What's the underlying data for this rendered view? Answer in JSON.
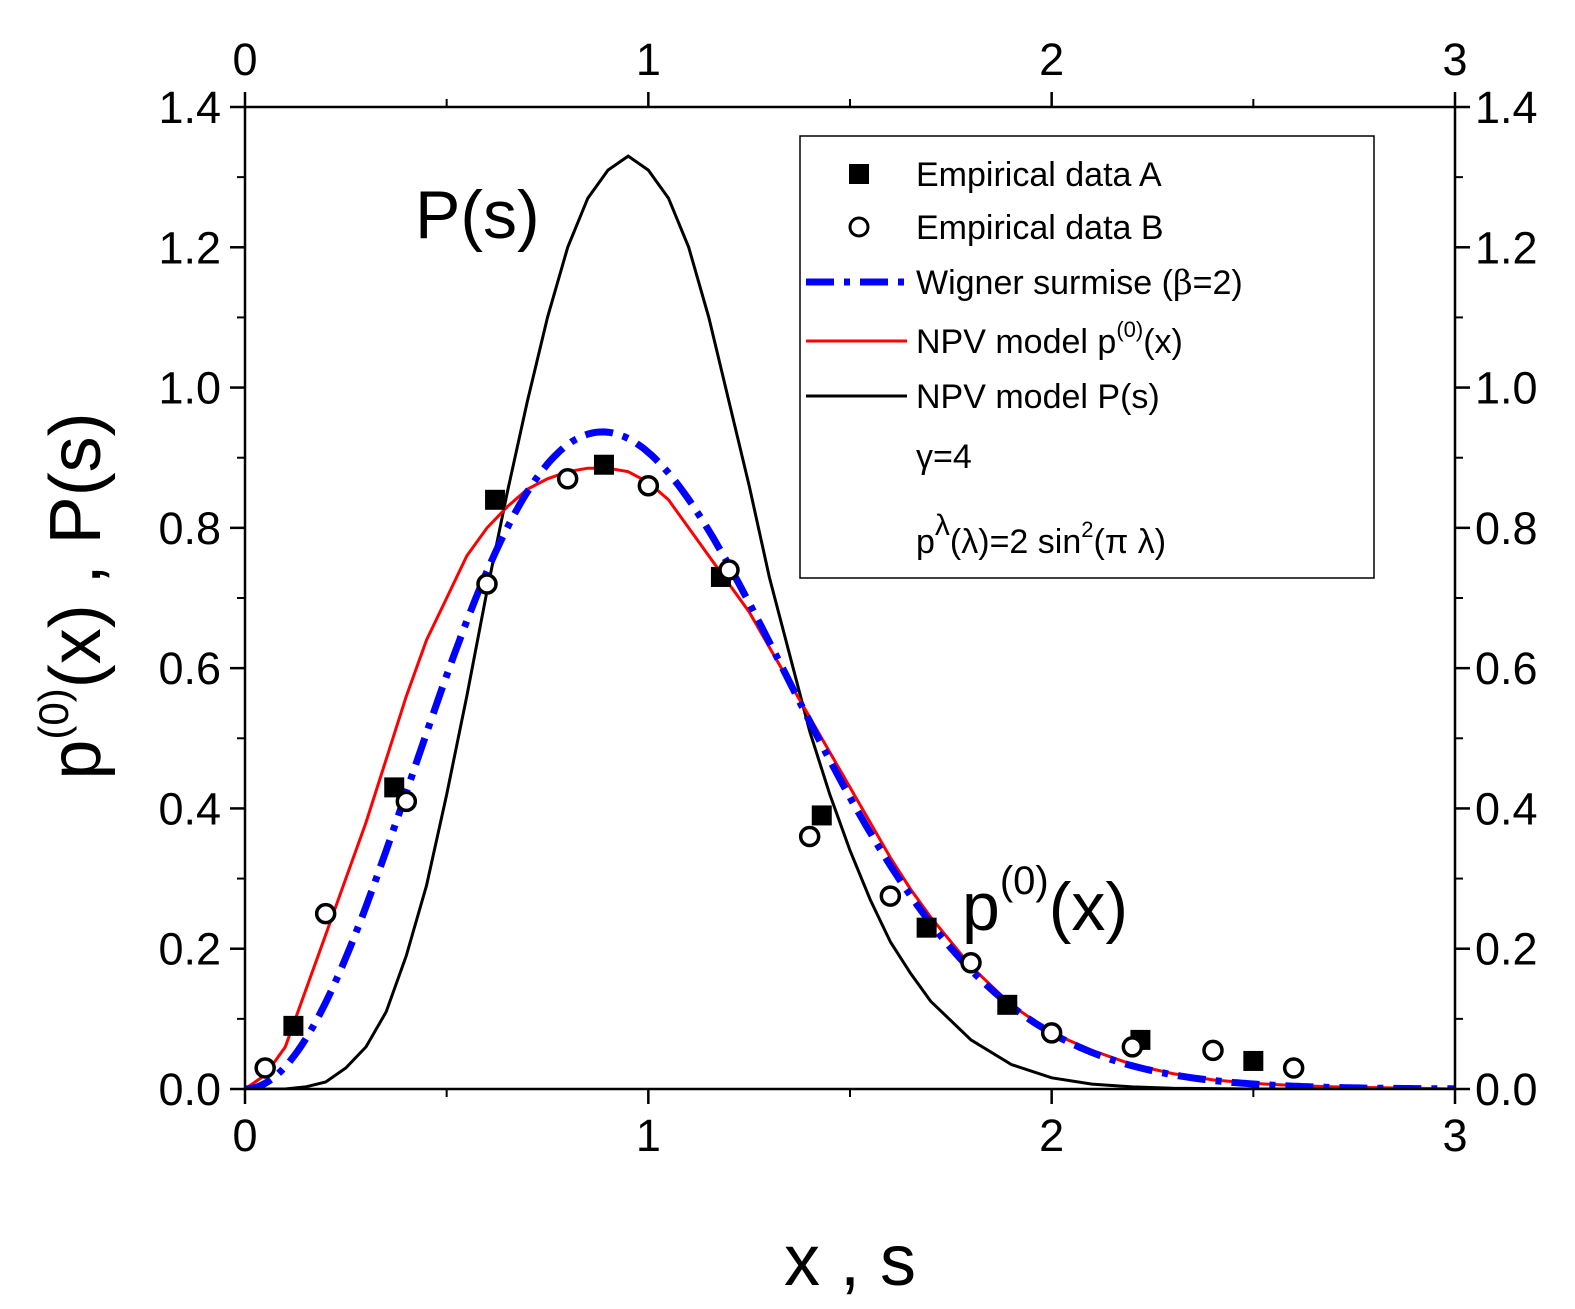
{
  "chart_data": {
    "type": "line",
    "title": "",
    "xlabel": "x , s",
    "ylabel_main": "p",
    "ylabel_sup": "(0)",
    "ylabel_rest": "(x) , P(s)",
    "xlim": [
      0,
      3
    ],
    "ylim": [
      0,
      1.4
    ],
    "xticks": [
      0,
      1,
      2,
      3
    ],
    "xtick_labels": [
      "0",
      "1",
      "2",
      "3"
    ],
    "yticks": [
      0,
      0.2,
      0.4,
      0.6,
      0.8,
      1.0,
      1.2,
      1.4
    ],
    "ytick_labels": [
      "0.0",
      "0.2",
      "0.4",
      "0.6",
      "0.8",
      "1.0",
      "1.2",
      "1.4"
    ],
    "legend_position": "top-right",
    "grid": false,
    "series": [
      {
        "name": "Empirical data A",
        "kind": "scatter",
        "marker": "filled-square",
        "color": "#000000",
        "x": [
          0.12,
          0.37,
          0.62,
          0.89,
          1.18,
          1.43,
          1.69,
          1.89,
          2.22,
          2.5
        ],
        "y": [
          0.09,
          0.43,
          0.84,
          0.89,
          0.73,
          0.39,
          0.23,
          0.12,
          0.07,
          0.04
        ]
      },
      {
        "name": "Empirical data B",
        "kind": "scatter",
        "marker": "open-circle",
        "color": "#000000",
        "x": [
          0.05,
          0.2,
          0.4,
          0.6,
          0.8,
          1.0,
          1.2,
          1.4,
          1.6,
          1.8,
          2.0,
          2.2,
          2.4,
          2.6
        ],
        "y": [
          0.03,
          0.25,
          0.41,
          0.72,
          0.87,
          0.86,
          0.74,
          0.36,
          0.275,
          0.18,
          0.08,
          0.06,
          0.055,
          0.03
        ]
      },
      {
        "name": "Wigner surmise (β=2)",
        "legend_main": "Wigner surmise (",
        "legend_beta": "β",
        "legend_tail": "=2)",
        "kind": "line",
        "style": "dash-dot",
        "color": "#0000ff",
        "formula": "32/pi^2 * x^2 * exp(-4 x^2 / pi)"
      },
      {
        "name": "NPV model p(0)(x)",
        "legend_main": "NPV model p",
        "legend_sup": "(0)",
        "legend_tail": "(x)",
        "kind": "line",
        "style": "solid",
        "color": "#ff0000",
        "x": [
          0,
          0.05,
          0.1,
          0.15,
          0.2,
          0.25,
          0.3,
          0.35,
          0.4,
          0.45,
          0.5,
          0.55,
          0.6,
          0.65,
          0.7,
          0.75,
          0.8,
          0.85,
          0.9,
          0.95,
          1.0,
          1.05,
          1.1,
          1.15,
          1.2,
          1.25,
          1.3,
          1.35,
          1.4,
          1.45,
          1.5,
          1.55,
          1.6,
          1.65,
          1.7,
          1.75,
          1.8,
          1.9,
          2.0,
          2.1,
          2.2,
          2.3,
          2.4,
          2.5,
          2.6,
          2.7,
          2.8,
          2.9,
          3.0
        ],
        "y": [
          0.0,
          0.02,
          0.06,
          0.14,
          0.22,
          0.3,
          0.38,
          0.47,
          0.56,
          0.64,
          0.7,
          0.76,
          0.8,
          0.83,
          0.855,
          0.87,
          0.88,
          0.885,
          0.885,
          0.88,
          0.865,
          0.84,
          0.8,
          0.76,
          0.72,
          0.68,
          0.63,
          0.58,
          0.53,
          0.48,
          0.43,
          0.38,
          0.33,
          0.285,
          0.245,
          0.21,
          0.175,
          0.12,
          0.08,
          0.055,
          0.035,
          0.022,
          0.013,
          0.008,
          0.005,
          0.003,
          0.002,
          0.001,
          0.0
        ]
      },
      {
        "name": "NPV model P(s)",
        "legend_main": "NPV model P(s)",
        "kind": "line",
        "style": "solid",
        "color": "#000000",
        "x": [
          0,
          0.1,
          0.15,
          0.2,
          0.25,
          0.3,
          0.35,
          0.4,
          0.45,
          0.5,
          0.55,
          0.6,
          0.65,
          0.7,
          0.75,
          0.8,
          0.85,
          0.9,
          0.95,
          1.0,
          1.05,
          1.1,
          1.15,
          1.2,
          1.25,
          1.3,
          1.35,
          1.4,
          1.45,
          1.5,
          1.55,
          1.6,
          1.65,
          1.7,
          1.8,
          1.9,
          2.0,
          2.1,
          2.2,
          2.3,
          2.5,
          2.7,
          3.0
        ],
        "y": [
          0.0,
          0.0,
          0.003,
          0.01,
          0.03,
          0.06,
          0.11,
          0.19,
          0.29,
          0.42,
          0.56,
          0.71,
          0.85,
          0.98,
          1.1,
          1.2,
          1.27,
          1.31,
          1.33,
          1.31,
          1.27,
          1.2,
          1.1,
          0.98,
          0.86,
          0.73,
          0.62,
          0.51,
          0.42,
          0.34,
          0.27,
          0.21,
          0.165,
          0.125,
          0.07,
          0.035,
          0.016,
          0.007,
          0.003,
          0.001,
          0.0,
          0.0,
          0.0
        ]
      }
    ],
    "legend_params": {
      "gamma": "γ=4",
      "p_base": "p",
      "p_sup": "λ",
      "p_paren": "(λ)=2 sin",
      "p_sq": "2",
      "p_tail": "(π λ)"
    },
    "annotations": {
      "ps_label": "P(s)",
      "px_main": "p",
      "px_sup": "(0)",
      "px_tail": "(x)"
    }
  }
}
